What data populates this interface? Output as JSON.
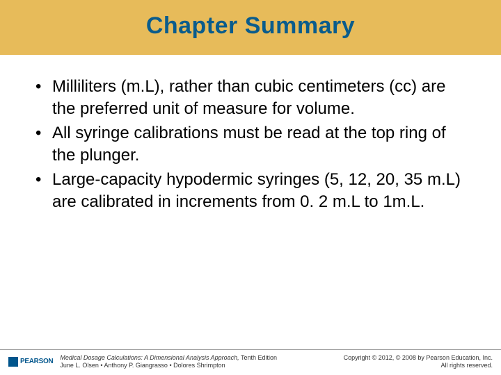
{
  "colors": {
    "title_band_bg": "#e7bb5a",
    "title_color": "#0a5c8c",
    "logo_color": "#00558c"
  },
  "title": "Chapter Summary",
  "bullets": [
    "Milliliters (m.L), rather than cubic centimeters (cc) are the preferred unit of measure for volume.",
    "All syringe calibrations must be read at the top ring of the plunger.",
    "Large-capacity hypodermic syringes (5, 12, 20, 35 m.L) are calibrated in increments from 0. 2 m.L to 1m.L."
  ],
  "footer": {
    "logo_text": "PEARSON",
    "book_title": "Medical Dosage Calculations: A Dimensional Analysis Approach,",
    "edition": " Tenth Edition",
    "authors": "June L. Olsen • Anthony P. Giangrasso • Dolores Shrimpton",
    "copyright": "Copyright © 2012, © 2008 by Pearson Education, Inc.",
    "rights": "All rights reserved."
  }
}
